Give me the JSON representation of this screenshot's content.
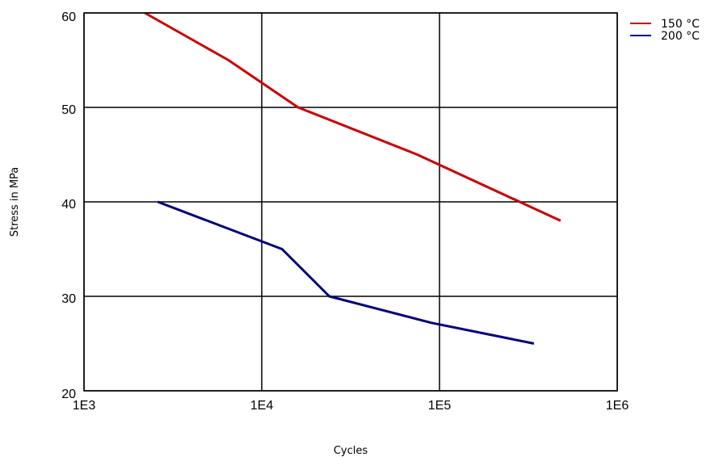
{
  "chart_data": {
    "type": "line",
    "x_scale": "log",
    "xlabel": "Cycles",
    "ylabel": "Stress in MPa",
    "xlim": [
      1000,
      1000000
    ],
    "ylim": [
      20,
      60
    ],
    "x_ticks": [
      "1E3",
      "1E4",
      "1E5",
      "1E6"
    ],
    "y_ticks": [
      "20",
      "30",
      "40",
      "50",
      "60"
    ],
    "grid": true,
    "legend_position": "top-right",
    "series": [
      {
        "name": "150 °C",
        "color": "#cc0000",
        "points": [
          [
            2200,
            60
          ],
          [
            6500,
            55
          ],
          [
            16000,
            50
          ],
          [
            75000,
            45
          ],
          [
            480000,
            38
          ]
        ]
      },
      {
        "name": "200 °C",
        "color": "#000080",
        "points": [
          [
            2600,
            40
          ],
          [
            13000,
            35
          ],
          [
            24000,
            30
          ],
          [
            90000,
            27.2
          ],
          [
            340000,
            25
          ]
        ]
      }
    ]
  }
}
